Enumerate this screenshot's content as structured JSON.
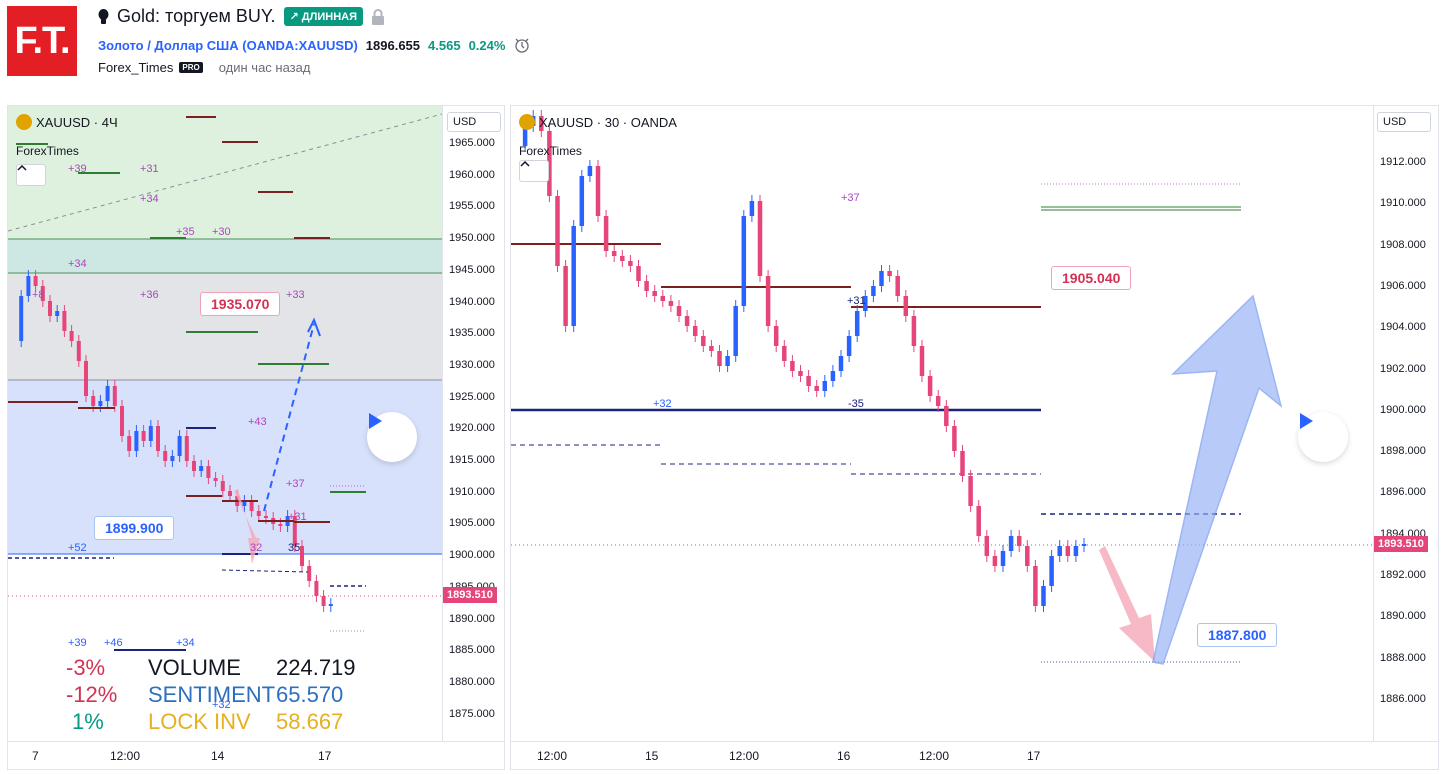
{
  "header": {
    "logo_text": "F.T.",
    "title": "Gold: торгуем BUY.",
    "badge": "↗ ДЛИННАЯ",
    "symbol_name": "Золото / Доллар США",
    "symbol_code": "(OANDA:XAUUSD)",
    "price": "1896.655",
    "change": "4.565",
    "change_pct": "0.24%",
    "author": "Forex_Times",
    "author_badge": "PRO",
    "time_ago": "один час назад"
  },
  "left_chart": {
    "legend": "XAUUSD · 4Ч",
    "sublegend": "ForexTimes",
    "currency": "USD",
    "price_labels": [
      "1965.000",
      "1960.000",
      "1955.000",
      "1950.000",
      "1945.000",
      "1940.000",
      "1935.000",
      "1930.000",
      "1925.000",
      "1920.000",
      "1915.000",
      "1910.000",
      "1905.000",
      "1900.000",
      "1895.000",
      "1890.000",
      "1885.000",
      "1880.000",
      "1875.000"
    ],
    "current_price": "1893.510",
    "time_labels": [
      "7",
      "12:00",
      "14",
      "17"
    ],
    "callout_high": "1935.070",
    "callout_low": "1899.900",
    "annotations": [
      "+39",
      "+31",
      "+34",
      "+35",
      "+30",
      "+34",
      "+36",
      "+33",
      "+43",
      "+37",
      "+31",
      "+52",
      "+32",
      "+35",
      "+39",
      "+46",
      "+34",
      "+32",
      "+8"
    ],
    "stats": [
      {
        "pct": "-3%",
        "label": "VOLUME",
        "value": "224.719"
      },
      {
        "pct": "-12%",
        "label": "SENTIMENT",
        "value": "65.570"
      },
      {
        "pct": "1%",
        "label": "LOCK INV",
        "value": "58.667"
      }
    ]
  },
  "right_chart": {
    "legend": "XAUUSD · 30 · OANDA",
    "sublegend": "ForexTimes",
    "currency": "USD",
    "price_labels": [
      "1912.000",
      "1910.000",
      "1908.000",
      "1906.000",
      "1904.000",
      "1902.000",
      "1900.000",
      "1898.000",
      "1896.000",
      "1894.000",
      "1892.000",
      "1890.000",
      "1888.000",
      "1886.000"
    ],
    "current_price": "1893.510",
    "time_labels": [
      "12:00",
      "15",
      "12:00",
      "16",
      "12:00",
      "17"
    ],
    "callout_target": "1905.040",
    "callout_entry": "1887.800",
    "annotations": [
      "+37",
      "+31",
      "+32",
      "-35"
    ]
  },
  "colors": {
    "up": "#2962ff",
    "down": "#e6457a",
    "green": "#089981",
    "accent_red": "#d23153"
  }
}
